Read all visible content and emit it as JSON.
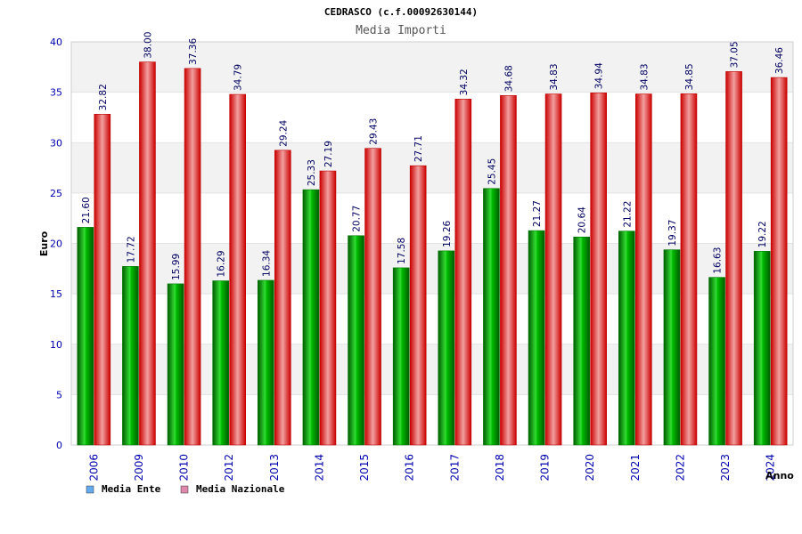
{
  "chart_data": {
    "type": "bar",
    "title": "CEDRASCO (c.f.00092630144)",
    "subtitle": "Media Importi",
    "xlabel": "Anno",
    "ylabel": "Euro",
    "ylim": [
      0,
      40
    ],
    "yticks": [
      0,
      5,
      10,
      15,
      20,
      25,
      30,
      35,
      40
    ],
    "grid": true,
    "legend_position": "bottom-left",
    "categories": [
      "2006",
      "2009",
      "2010",
      "2012",
      "2013",
      "2014",
      "2015",
      "2016",
      "2017",
      "2018",
      "2019",
      "2020",
      "2021",
      "2022",
      "2023",
      "2024"
    ],
    "series": [
      {
        "name": "Media Ente",
        "color": "#00aa00",
        "legend_color": "#66aaee",
        "values": [
          21.6,
          17.72,
          15.99,
          16.29,
          16.34,
          25.33,
          20.77,
          17.58,
          19.26,
          25.45,
          21.27,
          20.64,
          21.22,
          19.37,
          16.63,
          19.22
        ],
        "labels": [
          "21.60",
          "17.72",
          "15.99",
          "16.29",
          "16.34",
          "25.33",
          "20.77",
          "17.58",
          "19.26",
          "25.45",
          "21.27",
          "20.64",
          "21.22",
          "19.37",
          "16.63",
          "19.22"
        ]
      },
      {
        "name": "Media Nazionale",
        "color": "#ee1111",
        "legend_color": "#dd88aa",
        "values": [
          32.82,
          38.0,
          37.36,
          34.79,
          29.24,
          27.19,
          29.43,
          27.71,
          34.32,
          34.68,
          34.83,
          34.94,
          34.83,
          34.85,
          37.05,
          36.46
        ],
        "labels": [
          "32.82",
          "38.00",
          "37.36",
          "34.79",
          "29.24",
          "27.19",
          "29.43",
          "27.71",
          "34.32",
          "34.68",
          "34.83",
          "34.94",
          "34.83",
          "34.85",
          "37.05",
          "36.46"
        ]
      }
    ]
  }
}
